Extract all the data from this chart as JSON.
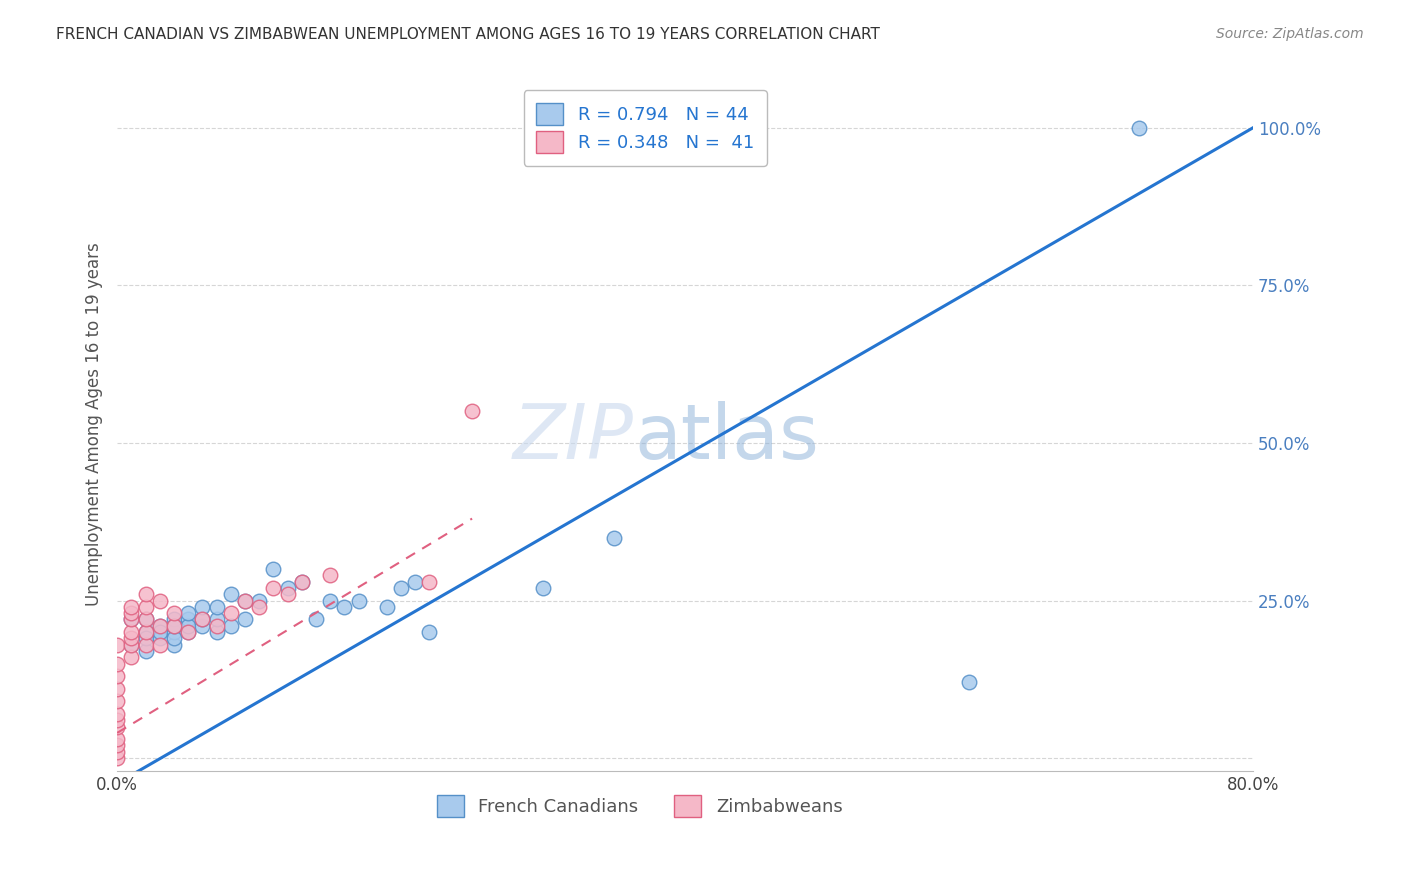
{
  "title": "FRENCH CANADIAN VS ZIMBABWEAN UNEMPLOYMENT AMONG AGES 16 TO 19 YEARS CORRELATION CHART",
  "source": "Source: ZipAtlas.com",
  "ylabel": "Unemployment Among Ages 16 to 19 years",
  "watermark": "ZIPatlas",
  "xlim": [
    0.0,
    0.8
  ],
  "ylim": [
    -0.02,
    1.08
  ],
  "xticks": [
    0.0,
    0.1,
    0.2,
    0.3,
    0.4,
    0.5,
    0.6,
    0.7,
    0.8
  ],
  "xticklabels": [
    "0.0%",
    "",
    "",
    "",
    "",
    "",
    "",
    "",
    "80.0%"
  ],
  "yticks": [
    0.0,
    0.25,
    0.5,
    0.75,
    1.0
  ],
  "yticklabels": [
    "",
    "25.0%",
    "50.0%",
    "75.0%",
    "100.0%"
  ],
  "blue_scatter_color": "#a8caed",
  "blue_edge_color": "#5590c8",
  "pink_scatter_color": "#f5b8c8",
  "pink_edge_color": "#e06080",
  "blue_line_color": "#2575d0",
  "pink_line_color": "#e06080",
  "grid_color": "#cccccc",
  "yaxis_label_color": "#4a7fc0",
  "blue_line_x0": 0.0,
  "blue_line_y0": -0.04,
  "blue_line_x1": 0.8,
  "blue_line_y1": 1.0,
  "pink_line_x0": 0.0,
  "pink_line_y0": 0.04,
  "pink_line_x1": 0.25,
  "pink_line_y1": 0.38,
  "french_canadians_x": [
    0.01,
    0.01,
    0.02,
    0.02,
    0.02,
    0.02,
    0.03,
    0.03,
    0.03,
    0.04,
    0.04,
    0.04,
    0.04,
    0.04,
    0.05,
    0.05,
    0.05,
    0.05,
    0.06,
    0.06,
    0.06,
    0.07,
    0.07,
    0.07,
    0.08,
    0.08,
    0.09,
    0.09,
    0.1,
    0.11,
    0.12,
    0.13,
    0.14,
    0.15,
    0.16,
    0.17,
    0.19,
    0.2,
    0.21,
    0.22,
    0.3,
    0.35,
    0.6,
    0.72
  ],
  "french_canadians_y": [
    0.18,
    0.22,
    0.17,
    0.2,
    0.22,
    0.19,
    0.19,
    0.21,
    0.2,
    0.18,
    0.2,
    0.22,
    0.19,
    0.21,
    0.2,
    0.22,
    0.21,
    0.23,
    0.21,
    0.22,
    0.24,
    0.2,
    0.22,
    0.24,
    0.21,
    0.26,
    0.22,
    0.25,
    0.25,
    0.3,
    0.27,
    0.28,
    0.22,
    0.25,
    0.24,
    0.25,
    0.24,
    0.27,
    0.28,
    0.2,
    0.27,
    0.35,
    0.12,
    1.0
  ],
  "zimbabweans_x": [
    0.0,
    0.0,
    0.0,
    0.0,
    0.0,
    0.0,
    0.0,
    0.0,
    0.0,
    0.0,
    0.0,
    0.0,
    0.01,
    0.01,
    0.01,
    0.01,
    0.01,
    0.01,
    0.01,
    0.02,
    0.02,
    0.02,
    0.02,
    0.02,
    0.03,
    0.03,
    0.03,
    0.04,
    0.04,
    0.05,
    0.06,
    0.07,
    0.08,
    0.09,
    0.1,
    0.11,
    0.12,
    0.13,
    0.15,
    0.22,
    0.25
  ],
  "zimbabweans_y": [
    0.0,
    0.01,
    0.02,
    0.03,
    0.05,
    0.06,
    0.07,
    0.09,
    0.11,
    0.13,
    0.15,
    0.18,
    0.16,
    0.18,
    0.19,
    0.2,
    0.22,
    0.23,
    0.24,
    0.18,
    0.2,
    0.22,
    0.24,
    0.26,
    0.18,
    0.21,
    0.25,
    0.21,
    0.23,
    0.2,
    0.22,
    0.21,
    0.23,
    0.25,
    0.24,
    0.27,
    0.26,
    0.28,
    0.29,
    0.28,
    0.55
  ]
}
